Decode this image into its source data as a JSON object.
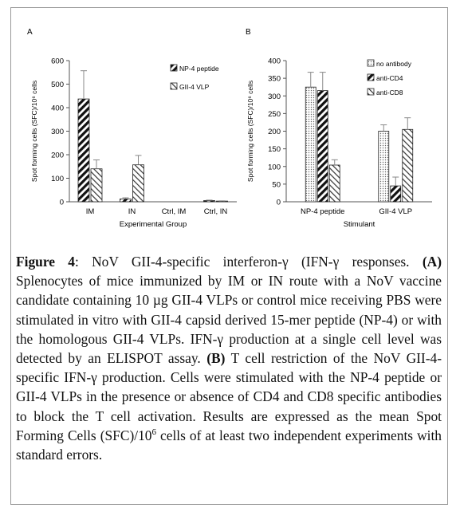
{
  "panels": [
    {
      "label": "A",
      "chart_data": {
        "type": "bar",
        "title": "",
        "xlabel": "Experimental Group",
        "ylabel": "Spot forming cells (SFC)/10⁶ cells",
        "ylim": [
          0,
          600
        ],
        "yticks": [
          0,
          100,
          200,
          300,
          400,
          500,
          600
        ],
        "categories": [
          "IM",
          "IN",
          "Ctrl, IM",
          "Ctrl, IN"
        ],
        "series": [
          {
            "name": "NP-4 peptide",
            "pattern": "diag-thick",
            "values": [
              437,
              12,
              0,
              5
            ],
            "errors": [
              120,
              5,
              0,
              2
            ]
          },
          {
            "name": "GII-4 VLP",
            "pattern": "diag-thin",
            "values": [
              140,
              157,
              0,
              3
            ],
            "errors": [
              38,
              40,
              0,
              1
            ]
          }
        ],
        "legend_position": "top-right",
        "grid": false
      }
    },
    {
      "label": "B",
      "chart_data": {
        "type": "bar",
        "title": "",
        "xlabel": "Stimulant",
        "ylabel": "Spot forming cells (SFC)/10⁶ cells",
        "ylim": [
          0,
          400
        ],
        "yticks": [
          0,
          50,
          100,
          150,
          200,
          250,
          300,
          350,
          400
        ],
        "categories": [
          "NP-4 peptide",
          "GII-4 VLP"
        ],
        "series": [
          {
            "name": "no antibody",
            "pattern": "dots",
            "values": [
              325,
              200
            ],
            "errors": [
              42,
              18
            ]
          },
          {
            "name": "anti-CD4",
            "pattern": "diag-thick",
            "values": [
              315,
              45
            ],
            "errors": [
              52,
              25
            ]
          },
          {
            "name": "anti-CD8",
            "pattern": "diag-thin",
            "values": [
              104,
              205
            ],
            "errors": [
              15,
              33
            ]
          }
        ],
        "legend_position": "top-right",
        "grid": false
      }
    }
  ],
  "caption": {
    "figure_label": "Figure 4",
    "title_text": ": NoV GII-4-specific interferon-γ (IFN-γ responses. ",
    "part_a_label": "(A)",
    "part_a_text": " Splenocytes of mice immunized by IM or IN route with a NoV vaccine candidate containing 10 µg GII-4 VLPs or control mice receiving PBS were stimulated in vitro with GII-4 capsid derived 15-mer peptide (NP-4) or with the homologous GII-4 VLPs. IFN-γ production at a single cell level was detected by an ELISPOT assay. ",
    "part_b_label": "(B)",
    "part_b_text": " T cell restriction of the NoV GII-4-specific IFN-γ production. Cells were stimulated with the NP-4 peptide or GII-4 VLPs in the presence or absence of CD4 and CD8 specific antibodies to block the T cell activation. Results are expressed as the mean Spot Forming Cells (SFC)/10",
    "superscript": "6",
    "tail_text": " cells of at least two independent experiments with standard errors."
  }
}
